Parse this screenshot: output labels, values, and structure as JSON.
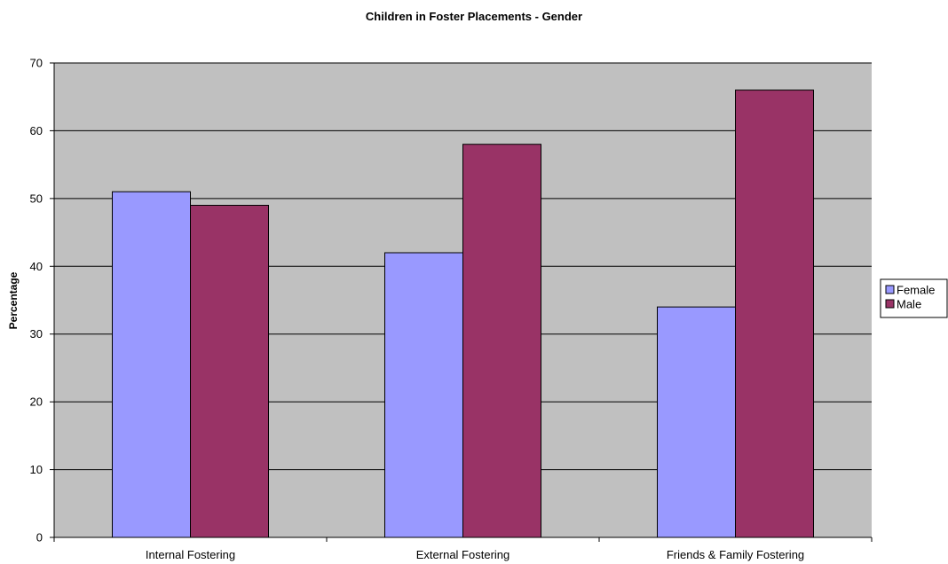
{
  "chart_data": {
    "type": "bar",
    "title": "Children in Foster Placements - Gender",
    "xlabel": "",
    "ylabel": "Percentage",
    "categories": [
      "Internal Fostering",
      "External Fostering",
      "Friends & Family Fostering"
    ],
    "series": [
      {
        "name": "Female",
        "values": [
          51,
          42,
          34
        ],
        "color": "#9999ff"
      },
      {
        "name": "Male",
        "values": [
          49,
          58,
          66
        ],
        "color": "#993366"
      }
    ],
    "ylim": [
      0,
      70
    ],
    "yticks": [
      0,
      10,
      20,
      30,
      40,
      50,
      60,
      70
    ],
    "grid": true,
    "plot_background": "#c0c0c0",
    "legend_position": "right"
  }
}
